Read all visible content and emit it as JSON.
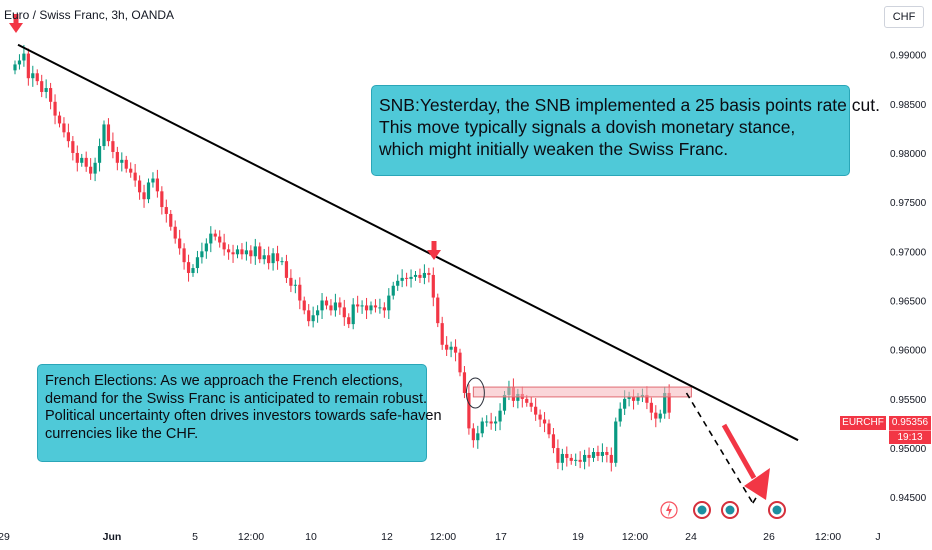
{
  "header": {
    "title": "Euro / Swiss Franc, 3h, OANDA",
    "currency_button": "CHF"
  },
  "notes": {
    "snb": [
      "SNB:Yesterday, the SNB implemented a 25 basis points rate cut.",
      "This move typically signals a dovish monetary stance,",
      "which might initially weaken the Swiss Franc."
    ],
    "french": [
      "French Elections: As we approach the French elections,",
      "demand for the Swiss Franc is anticipated to remain robust.",
      "Political uncertainty often drives investors towards safe-haven",
      "currencies like the CHF."
    ]
  },
  "price_tag": {
    "symbol": "EURCHF",
    "price": "0.95356",
    "countdown": "19:13"
  },
  "colors": {
    "up": "#089981",
    "down": "#f23645",
    "note_bg": "#4fc9d8",
    "trendline": "#000000",
    "zone": "#f5b5b9",
    "arrow": "#f23645"
  },
  "icons": [
    "lightning-icon",
    "event-icon",
    "event-icon",
    "event-icon"
  ],
  "chart_data": {
    "type": "candlestick",
    "symbol": "EURCHF",
    "timeframe": "3h",
    "y_ticks": [
      0.99,
      0.985,
      0.98,
      0.975,
      0.97,
      0.965,
      0.96,
      0.955,
      0.95,
      0.945
    ],
    "y_tick_labels": [
      "0.99000",
      "0.98500",
      "0.98000",
      "0.97500",
      "0.97000",
      "0.96500",
      "0.96000",
      "0.95500",
      "0.95000",
      "0.94500"
    ],
    "ylim": [
      0.9435,
      0.9925
    ],
    "x_tick_labels": [
      "29",
      "Jun",
      "5",
      "12:00",
      "10",
      "12",
      "12:00",
      "17",
      "19",
      "12:00",
      "24",
      "26",
      "12:00",
      "J"
    ],
    "closes": [
      0.989,
      0.9894,
      0.9901,
      0.9876,
      0.9881,
      0.9873,
      0.9862,
      0.9866,
      0.9852,
      0.9838,
      0.983,
      0.9821,
      0.9812,
      0.98,
      0.979,
      0.9795,
      0.9786,
      0.9779,
      0.979,
      0.9807,
      0.9829,
      0.9812,
      0.9801,
      0.979,
      0.9793,
      0.9784,
      0.978,
      0.9772,
      0.976,
      0.9753,
      0.977,
      0.9774,
      0.9761,
      0.9745,
      0.9738,
      0.9725,
      0.9713,
      0.9703,
      0.9689,
      0.9678,
      0.9683,
      0.9694,
      0.97,
      0.9708,
      0.9718,
      0.9715,
      0.9709,
      0.9702,
      0.9699,
      0.9697,
      0.9702,
      0.9697,
      0.9701,
      0.9695,
      0.9705,
      0.9692,
      0.9696,
      0.9688,
      0.9698,
      0.969,
      0.969,
      0.9673,
      0.9665,
      0.9666,
      0.965,
      0.964,
      0.9629,
      0.9635,
      0.964,
      0.965,
      0.9645,
      0.964,
      0.9648,
      0.9643,
      0.9633,
      0.9626,
      0.9646,
      0.9644,
      0.9645,
      0.964,
      0.9645,
      0.9643,
      0.9643,
      0.964,
      0.9655,
      0.9665,
      0.967,
      0.9673,
      0.9672,
      0.9674,
      0.9676,
      0.9673,
      0.9678,
      0.9676,
      0.9653,
      0.9627,
      0.9605,
      0.96,
      0.9603,
      0.9597,
      0.9577,
      0.9556,
      0.952,
      0.9508,
      0.9515,
      0.9527,
      0.9527,
      0.9525,
      0.9527,
      0.9538,
      0.9554,
      0.9562,
      0.9548,
      0.9555,
      0.955,
      0.9546,
      0.9542,
      0.9534,
      0.9529,
      0.9525,
      0.9514,
      0.95,
      0.9485,
      0.9494,
      0.949,
      0.9487,
      0.9488,
      0.9486,
      0.9493,
      0.949,
      0.9496,
      0.9492,
      0.9496,
      0.9493,
      0.9485,
      0.9527,
      0.954,
      0.955,
      0.9552,
      0.9548,
      0.9552,
      0.9554,
      0.9546,
      0.9536,
      0.953,
      0.9535,
      0.9556,
      0.9536
    ],
    "trendline": {
      "points": [
        [
          0,
          0.991
        ],
        [
          149,
          0.9508
        ]
      ]
    },
    "trendline_touch_arrows_at_bar": [
      0,
      96
    ],
    "resistance_zone": [
      0.9552,
      0.9562
    ],
    "projection": {
      "from_bar": 150,
      "to_bar": 164,
      "target": 0.944
    },
    "grid": false
  }
}
